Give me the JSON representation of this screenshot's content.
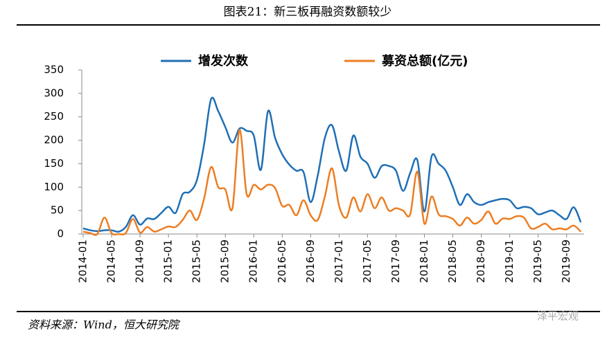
{
  "chart_data": {
    "type": "line",
    "title": "图表21：新三板再融资数额较少",
    "source": "资料来源：Wind，恒大研究院",
    "watermark": "泽平宏观",
    "categories": [
      "2014-01",
      null,
      null,
      null,
      "2014-05",
      null,
      null,
      null,
      "2014-09",
      null,
      null,
      null,
      "2015-01",
      null,
      null,
      null,
      "2015-05",
      null,
      null,
      null,
      "2015-09",
      null,
      null,
      null,
      "2016-01",
      null,
      null,
      null,
      "2016-05",
      null,
      null,
      null,
      "2016-09",
      null,
      null,
      null,
      "2017-01",
      null,
      null,
      null,
      "2017-05",
      null,
      null,
      null,
      "2017-09",
      null,
      null,
      null,
      "2018-01",
      null,
      null,
      null,
      "2018-05",
      null,
      null,
      null,
      "2018-09",
      null,
      null,
      null,
      "2019-01",
      null,
      null,
      null,
      "2019-05",
      null,
      null,
      null,
      "2019-09",
      null,
      null
    ],
    "series": [
      {
        "name": "增发次数",
        "color": "#1f6fb5",
        "values": [
          12,
          8,
          6,
          8,
          8,
          5,
          15,
          40,
          20,
          33,
          32,
          45,
          58,
          45,
          85,
          90,
          115,
          190,
          288,
          262,
          228,
          195,
          225,
          220,
          210,
          137,
          262,
          205,
          170,
          148,
          135,
          132,
          68,
          125,
          205,
          232,
          175,
          135,
          210,
          165,
          150,
          120,
          145,
          145,
          135,
          92,
          130,
          158,
          48,
          165,
          150,
          135,
          100,
          62,
          85,
          68,
          62,
          68,
          72,
          75,
          72,
          55,
          58,
          55,
          42,
          46,
          50,
          40,
          32,
          57,
          25
        ]
      },
      {
        "name": "募资总额(亿元)",
        "color": "#ed7d22",
        "values": [
          5,
          2,
          0,
          35,
          2,
          0,
          2,
          32,
          3,
          15,
          5,
          10,
          16,
          15,
          30,
          50,
          30,
          75,
          143,
          100,
          95,
          55,
          222,
          85,
          105,
          95,
          105,
          98,
          60,
          62,
          40,
          72,
          40,
          30,
          80,
          140,
          60,
          35,
          78,
          48,
          85,
          55,
          78,
          50,
          55,
          50,
          42,
          133,
          22,
          80,
          42,
          38,
          32,
          18,
          35,
          22,
          30,
          48,
          22,
          33,
          32,
          38,
          35,
          12,
          15,
          22,
          10,
          12,
          10,
          18,
          5
        ]
      }
    ],
    "ylim": [
      0,
      350
    ],
    "yticks": [
      0,
      50,
      100,
      150,
      200,
      250,
      300,
      350
    ]
  }
}
